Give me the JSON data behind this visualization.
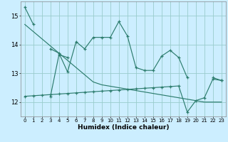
{
  "xlabel": "Humidex (Indice chaleur)",
  "x_values": [
    0,
    1,
    2,
    3,
    4,
    5,
    6,
    7,
    8,
    9,
    10,
    11,
    12,
    13,
    14,
    15,
    16,
    17,
    18,
    19,
    20,
    21,
    22,
    23
  ],
  "line_main": [
    15.3,
    14.7,
    null,
    13.85,
    13.7,
    13.05,
    14.1,
    13.85,
    14.25,
    14.25,
    14.25,
    14.8,
    14.3,
    13.2,
    13.1,
    13.1,
    13.6,
    13.8,
    13.55,
    12.85,
    null,
    null,
    12.85,
    12.75
  ],
  "line_upper": [
    14.7,
    14.45,
    14.2,
    13.95,
    13.7,
    13.45,
    13.2,
    12.95,
    12.7,
    12.6,
    12.55,
    12.5,
    12.45,
    12.4,
    12.35,
    12.3,
    12.25,
    12.2,
    12.15,
    12.1,
    12.05,
    12.0,
    12.0,
    12.0
  ],
  "line_lower": [
    12.2,
    12.22,
    12.24,
    12.26,
    12.28,
    12.3,
    12.32,
    12.34,
    12.36,
    12.38,
    12.4,
    12.42,
    12.44,
    12.46,
    12.48,
    12.5,
    12.52,
    12.54,
    12.56,
    11.65,
    12.05,
    12.15,
    12.8,
    12.75
  ],
  "line_vseg": [
    null,
    null,
    null,
    12.2,
    13.65,
    13.55,
    null,
    null,
    null,
    null,
    null,
    null,
    null,
    null,
    null,
    null,
    null,
    null,
    null,
    null,
    null,
    null,
    null,
    null
  ],
  "main_color": "#2d7d6e",
  "bg_color": "#cceeff",
  "grid_color": "#99cccc",
  "ylim": [
    11.5,
    15.5
  ],
  "xlim": [
    -0.5,
    23.5
  ],
  "yticks": [
    12,
    13,
    14,
    15
  ],
  "xticks": [
    0,
    1,
    2,
    3,
    4,
    5,
    6,
    7,
    8,
    9,
    10,
    11,
    12,
    13,
    14,
    15,
    16,
    17,
    18,
    19,
    20,
    21,
    22,
    23
  ]
}
